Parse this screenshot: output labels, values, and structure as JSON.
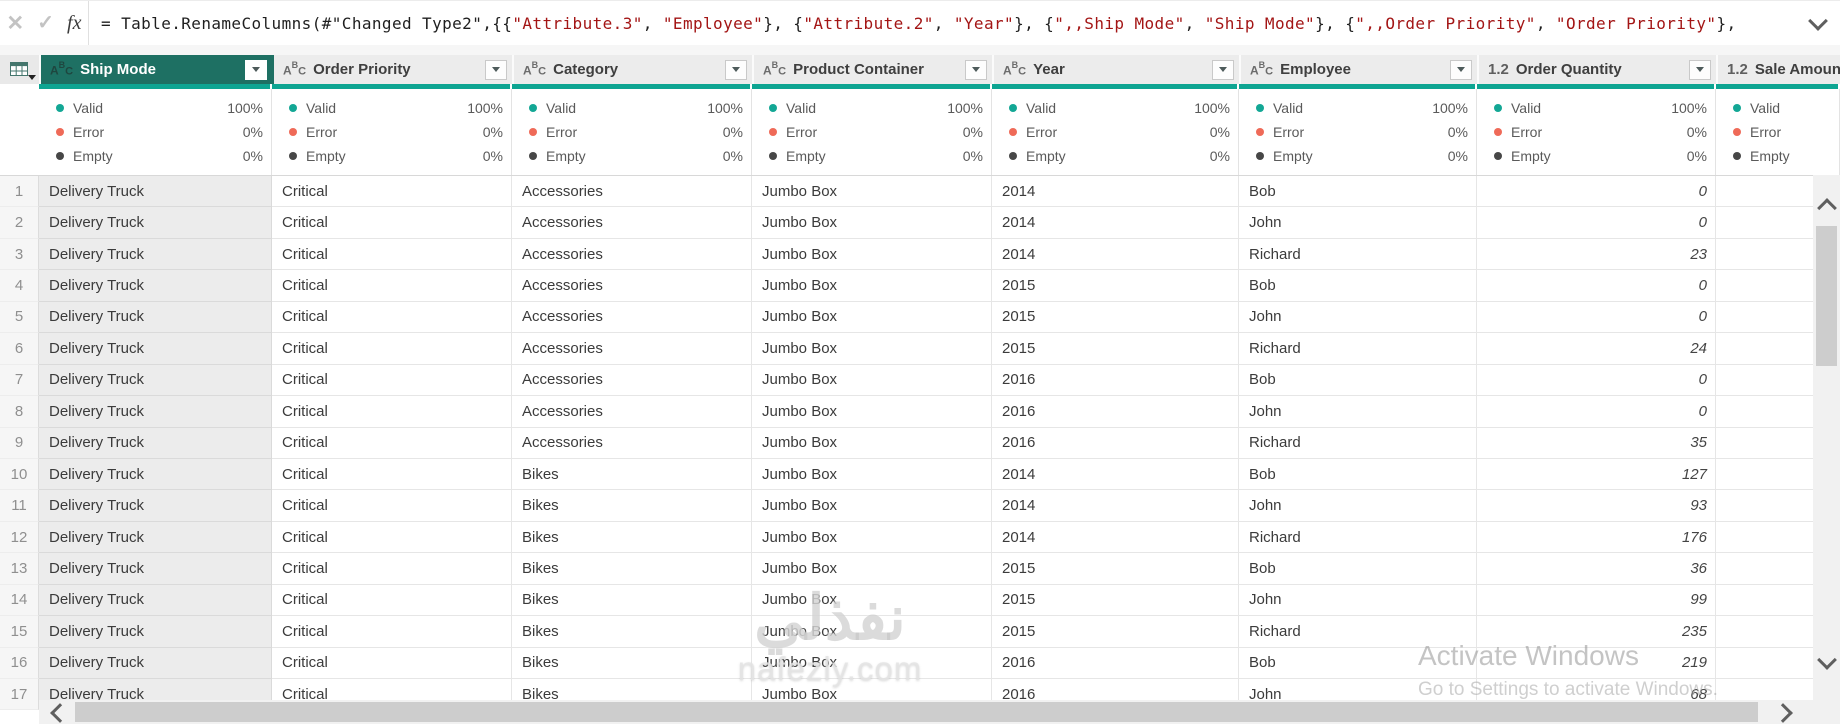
{
  "formula_bar": {
    "cancel_icon": "✕",
    "check_icon": "✓",
    "fx_label": "fx",
    "tokens": [
      {
        "t": "= Table.RenameColumns(#\"Changed Type2\",{{",
        "c": "code"
      },
      {
        "t": "\"Attribute.3\"",
        "c": "str"
      },
      {
        "t": ", ",
        "c": "code"
      },
      {
        "t": "\"Employee\"",
        "c": "str"
      },
      {
        "t": "}, {",
        "c": "code"
      },
      {
        "t": "\"Attribute.2\"",
        "c": "str"
      },
      {
        "t": ", ",
        "c": "code"
      },
      {
        "t": "\"Year\"",
        "c": "str"
      },
      {
        "t": "}, {",
        "c": "code"
      },
      {
        "t": "\",,Ship Mode\"",
        "c": "str"
      },
      {
        "t": ", ",
        "c": "code"
      },
      {
        "t": "\"Ship Mode\"",
        "c": "str"
      },
      {
        "t": "}, {",
        "c": "code"
      },
      {
        "t": "\",,Order Priority\"",
        "c": "str"
      },
      {
        "t": ", ",
        "c": "code"
      },
      {
        "t": "\"Order Priority\"",
        "c": "str"
      },
      {
        "t": "},",
        "c": "code"
      }
    ]
  },
  "type_icons": {
    "text_letters": [
      "A",
      "B",
      "C"
    ],
    "number": "1.2"
  },
  "quality_labels": {
    "valid": "Valid",
    "error": "Error",
    "empty": "Empty"
  },
  "columns": [
    {
      "name": "Ship Mode",
      "type": "text",
      "selected": true,
      "valid": "100%",
      "error": "0%",
      "empty": "0%"
    },
    {
      "name": "Order Priority",
      "type": "text",
      "valid": "100%",
      "error": "0%",
      "empty": "0%"
    },
    {
      "name": "Category",
      "type": "text",
      "valid": "100%",
      "error": "0%",
      "empty": "0%"
    },
    {
      "name": "Product Container",
      "type": "text",
      "valid": "100%",
      "error": "0%",
      "empty": "0%"
    },
    {
      "name": "Year",
      "type": "text",
      "valid": "100%",
      "error": "0%",
      "empty": "0%"
    },
    {
      "name": "Employee",
      "type": "text",
      "valid": "100%",
      "error": "0%",
      "empty": "0%"
    },
    {
      "name": "Order Quantity",
      "type": "number",
      "valid": "100%",
      "error": "0%",
      "empty": "0%"
    },
    {
      "name": "Sale Amount",
      "type": "number",
      "cut": true,
      "valid": "",
      "error": "",
      "empty": ""
    }
  ],
  "rows": [
    {
      "n": "1",
      "cells": [
        "Delivery Truck",
        "Critical",
        "Accessories",
        "Jumbo Box",
        "2014",
        "Bob",
        "0",
        ""
      ]
    },
    {
      "n": "2",
      "cells": [
        "Delivery Truck",
        "Critical",
        "Accessories",
        "Jumbo Box",
        "2014",
        "John",
        "0",
        ""
      ]
    },
    {
      "n": "3",
      "cells": [
        "Delivery Truck",
        "Critical",
        "Accessories",
        "Jumbo Box",
        "2014",
        "Richard",
        "23",
        ""
      ]
    },
    {
      "n": "4",
      "cells": [
        "Delivery Truck",
        "Critical",
        "Accessories",
        "Jumbo Box",
        "2015",
        "Bob",
        "0",
        ""
      ]
    },
    {
      "n": "5",
      "cells": [
        "Delivery Truck",
        "Critical",
        "Accessories",
        "Jumbo Box",
        "2015",
        "John",
        "0",
        ""
      ]
    },
    {
      "n": "6",
      "cells": [
        "Delivery Truck",
        "Critical",
        "Accessories",
        "Jumbo Box",
        "2015",
        "Richard",
        "24",
        ""
      ]
    },
    {
      "n": "7",
      "cells": [
        "Delivery Truck",
        "Critical",
        "Accessories",
        "Jumbo Box",
        "2016",
        "Bob",
        "0",
        ""
      ]
    },
    {
      "n": "8",
      "cells": [
        "Delivery Truck",
        "Critical",
        "Accessories",
        "Jumbo Box",
        "2016",
        "John",
        "0",
        ""
      ]
    },
    {
      "n": "9",
      "cells": [
        "Delivery Truck",
        "Critical",
        "Accessories",
        "Jumbo Box",
        "2016",
        "Richard",
        "35",
        ""
      ]
    },
    {
      "n": "10",
      "cells": [
        "Delivery Truck",
        "Critical",
        "Bikes",
        "Jumbo Box",
        "2014",
        "Bob",
        "127",
        ""
      ]
    },
    {
      "n": "11",
      "cells": [
        "Delivery Truck",
        "Critical",
        "Bikes",
        "Jumbo Box",
        "2014",
        "John",
        "93",
        ""
      ]
    },
    {
      "n": "12",
      "cells": [
        "Delivery Truck",
        "Critical",
        "Bikes",
        "Jumbo Box",
        "2014",
        "Richard",
        "176",
        ""
      ]
    },
    {
      "n": "13",
      "cells": [
        "Delivery Truck",
        "Critical",
        "Bikes",
        "Jumbo Box",
        "2015",
        "Bob",
        "36",
        ""
      ]
    },
    {
      "n": "14",
      "cells": [
        "Delivery Truck",
        "Critical",
        "Bikes",
        "Jumbo Box",
        "2015",
        "John",
        "99",
        ""
      ]
    },
    {
      "n": "15",
      "cells": [
        "Delivery Truck",
        "Critical",
        "Bikes",
        "Jumbo Box",
        "2015",
        "Richard",
        "235",
        ""
      ]
    },
    {
      "n": "16",
      "cells": [
        "Delivery Truck",
        "Critical",
        "Bikes",
        "Jumbo Box",
        "2016",
        "Bob",
        "219",
        ""
      ]
    },
    {
      "n": "17",
      "cells": [
        "Delivery Truck",
        "Critical",
        "Bikes",
        "Jumbo Box",
        "2016",
        "John",
        "68",
        ""
      ]
    }
  ],
  "watermarks": {
    "activate_line1": "Activate Windows",
    "activate_line2": "Go to Settings to activate Windows.",
    "site_arabic": "نفذلي",
    "site_domain": "nafezly.com"
  },
  "colors": {
    "selected_header": "#1e7063",
    "quality_bar": "#0ea592",
    "valid_dot": "#13a795",
    "error_dot": "#ef6a58",
    "empty_dot": "#474747",
    "string_literal": "#a31515"
  }
}
